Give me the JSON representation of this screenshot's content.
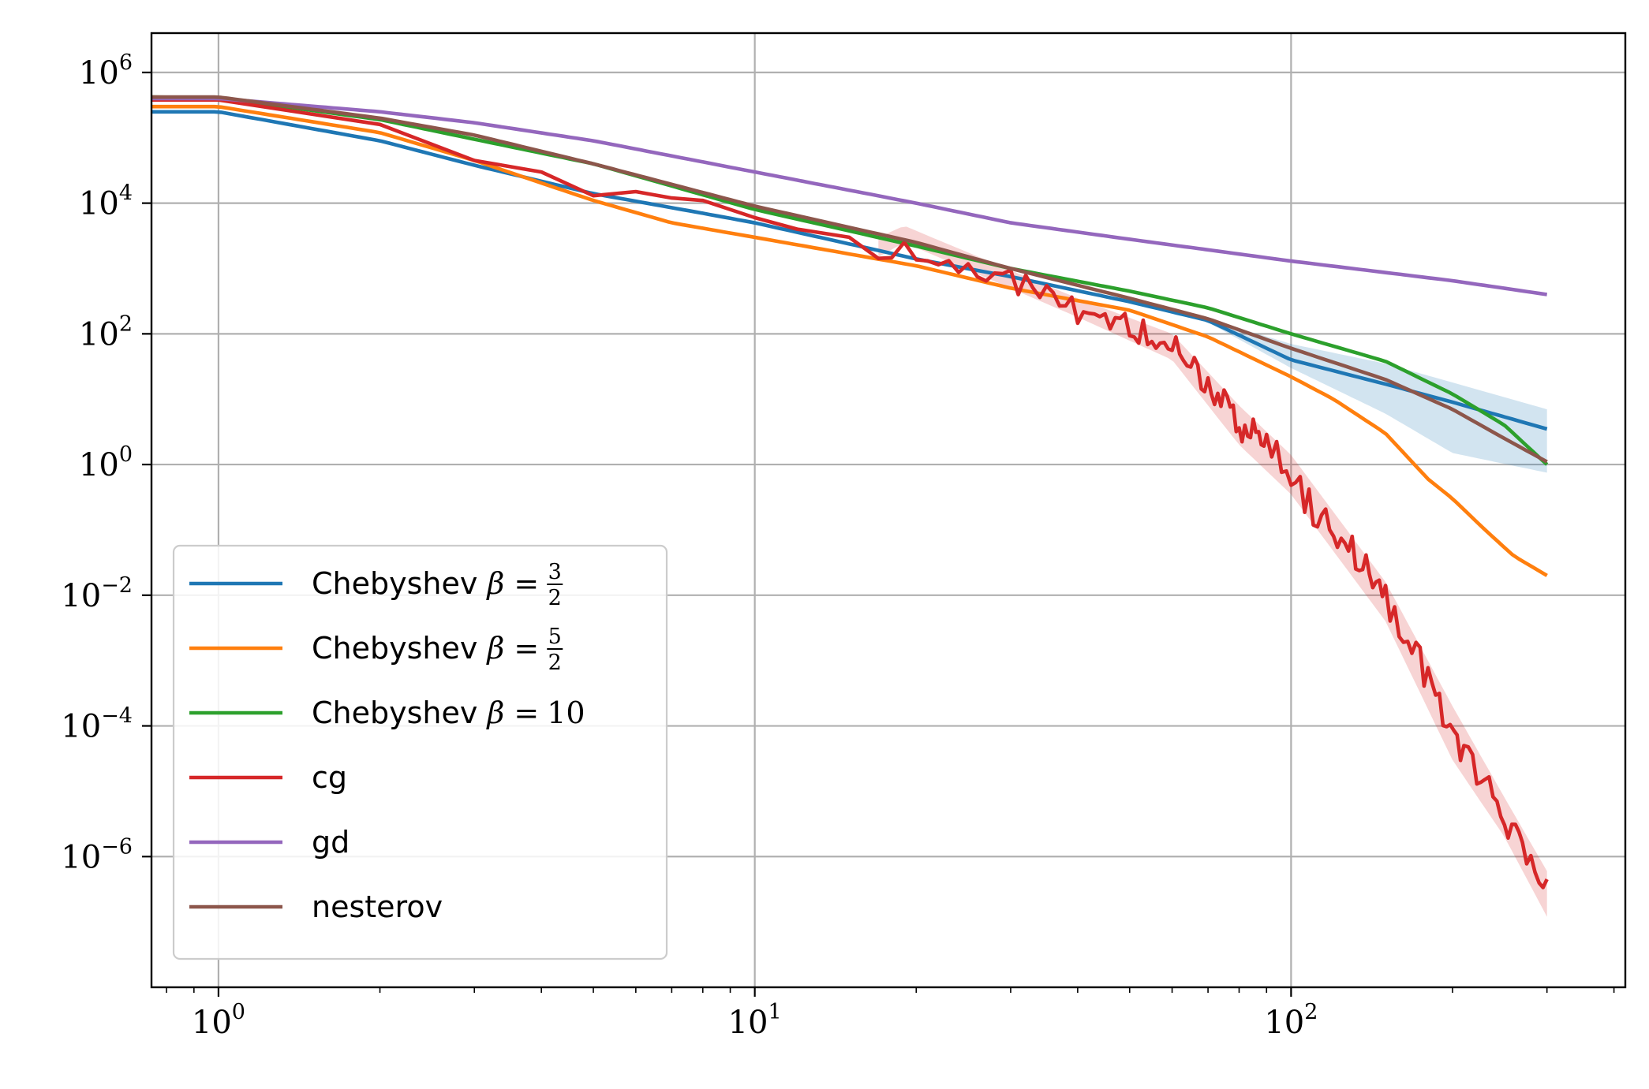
{
  "chart_data": {
    "type": "line",
    "title": "",
    "xlabel": "",
    "ylabel": "",
    "x_scale": "log",
    "y_scale": "log",
    "xlim": [
      0.75,
      420
    ],
    "ylim": [
      1e-08,
      4000000.0
    ],
    "grid": true,
    "legend_position": "lower-left",
    "x_ticks": [
      {
        "value": 1,
        "base": "10",
        "exp": "0"
      },
      {
        "value": 10,
        "base": "10",
        "exp": "1"
      },
      {
        "value": 100,
        "base": "10",
        "exp": "2"
      }
    ],
    "y_ticks": [
      {
        "value": 1000000.0,
        "base": "10",
        "exp": "6"
      },
      {
        "value": 10000.0,
        "base": "10",
        "exp": "4"
      },
      {
        "value": 100.0,
        "base": "10",
        "exp": "2"
      },
      {
        "value": 1,
        "base": "10",
        "exp": "0"
      },
      {
        "value": 0.01,
        "base": "10",
        "exp": "−2"
      },
      {
        "value": 0.0001,
        "base": "10",
        "exp": "−4"
      },
      {
        "value": 1e-06,
        "base": "10",
        "exp": "−6"
      }
    ],
    "series": [
      {
        "name": "Chebyshev β = 3/2",
        "legend_prefix": "Chebyshev",
        "legend_math": "β =",
        "legend_num": "",
        "legend_frac_num": "3",
        "legend_frac_den": "2",
        "color": "#1f77b4",
        "points": [
          [
            0.75,
            250000
          ],
          [
            1,
            250000
          ],
          [
            2,
            90000
          ],
          [
            3,
            38000
          ],
          [
            5,
            14000
          ],
          [
            8,
            7000
          ],
          [
            10,
            5000
          ],
          [
            20,
            1400
          ],
          [
            30,
            750
          ],
          [
            50,
            310
          ],
          [
            70,
            160
          ],
          [
            100,
            40
          ],
          [
            150,
            17
          ],
          [
            200,
            9
          ],
          [
            300,
            3.5
          ]
        ],
        "band": {
          "color": "#1f77b4",
          "opacity": 0.2,
          "upper": [
            [
              50,
              320
            ],
            [
              70,
              170
            ],
            [
              100,
              70
            ],
            [
              150,
              35
            ],
            [
              200,
              18
            ],
            [
              300,
              7
            ]
          ],
          "lower": [
            [
              50,
              300
            ],
            [
              70,
              150
            ],
            [
              100,
              30
            ],
            [
              150,
              6
            ],
            [
              200,
              1.5
            ],
            [
              300,
              0.75
            ]
          ]
        }
      },
      {
        "name": "Chebyshev β = 5/2",
        "legend_prefix": "Chebyshev",
        "legend_math": "β =",
        "legend_num": "",
        "legend_frac_num": "5",
        "legend_frac_den": "2",
        "color": "#ff7f0e",
        "points": [
          [
            0.75,
            300000
          ],
          [
            1,
            300000
          ],
          [
            2,
            120000
          ],
          [
            3,
            45000
          ],
          [
            5,
            11000
          ],
          [
            7,
            5000
          ],
          [
            10,
            3000
          ],
          [
            20,
            1100
          ],
          [
            30,
            500
          ],
          [
            50,
            230
          ],
          [
            70,
            90
          ],
          [
            100,
            22
          ],
          [
            120,
            10
          ],
          [
            150,
            3
          ],
          [
            180,
            0.6
          ],
          [
            200,
            0.3
          ],
          [
            230,
            0.1
          ],
          [
            260,
            0.04
          ],
          [
            300,
            0.02
          ]
        ]
      },
      {
        "name": "Chebyshev β = 10",
        "legend_prefix": "Chebyshev",
        "legend_math": "β =",
        "legend_num": "10",
        "legend_frac_num": "",
        "legend_frac_den": "",
        "color": "#2ca02c",
        "points": [
          [
            0.75,
            420000
          ],
          [
            1,
            410000
          ],
          [
            2,
            190000
          ],
          [
            3,
            95000
          ],
          [
            5,
            40000
          ],
          [
            10,
            8000
          ],
          [
            20,
            2200
          ],
          [
            30,
            1000
          ],
          [
            50,
            450
          ],
          [
            70,
            250
          ],
          [
            100,
            100
          ],
          [
            150,
            38
          ],
          [
            200,
            12
          ],
          [
            250,
            4
          ],
          [
            300,
            1
          ]
        ]
      },
      {
        "name": "cg",
        "legend_prefix": "cg",
        "legend_math": "",
        "legend_num": "",
        "legend_frac_num": "",
        "legend_frac_den": "",
        "color": "#d62728",
        "noisy_from": 17,
        "noise_amp": 0.25,
        "points": [
          [
            0.75,
            380000
          ],
          [
            1,
            380000
          ],
          [
            2,
            160000
          ],
          [
            3,
            45000
          ],
          [
            4,
            30000
          ],
          [
            5,
            13000
          ],
          [
            6,
            15000
          ],
          [
            7,
            12000
          ],
          [
            8,
            11000
          ],
          [
            10,
            6000
          ],
          [
            12,
            4000
          ],
          [
            15,
            3000
          ],
          [
            18,
            2000
          ],
          [
            19,
            3500
          ],
          [
            20,
            1500
          ],
          [
            22,
            900
          ],
          [
            25,
            700
          ],
          [
            30,
            600
          ],
          [
            35,
            600
          ],
          [
            40,
            250
          ],
          [
            45,
            150
          ],
          [
            50,
            150
          ],
          [
            60,
            60
          ],
          [
            70,
            20
          ],
          [
            80,
            4
          ],
          [
            90,
            2
          ],
          [
            100,
            0.7
          ],
          [
            110,
            0.2
          ],
          [
            120,
            0.1
          ],
          [
            130,
            0.05
          ],
          [
            140,
            0.02
          ],
          [
            150,
            0.008
          ],
          [
            170,
            0.0015
          ],
          [
            190,
            0.0002
          ],
          [
            210,
            4e-05
          ],
          [
            230,
            1.2e-05
          ],
          [
            250,
            4e-06
          ],
          [
            270,
            1.5e-06
          ],
          [
            300,
            3e-07
          ]
        ],
        "band": {
          "color": "#d62728",
          "opacity": 0.2,
          "upper": [
            [
              17,
              3000
            ],
            [
              19,
              4500
            ],
            [
              40,
              350
            ],
            [
              60,
              100
            ],
            [
              80,
              8
            ],
            [
              100,
              1.4
            ],
            [
              150,
              0.016
            ],
            [
              200,
              0.0002
            ],
            [
              250,
              8e-06
            ],
            [
              300,
              6e-07
            ]
          ],
          "lower": [
            [
              17,
              1500
            ],
            [
              19,
              2500
            ],
            [
              40,
              180
            ],
            [
              60,
              40
            ],
            [
              80,
              2
            ],
            [
              100,
              0.35
            ],
            [
              150,
              0.004
            ],
            [
              200,
              3e-05
            ],
            [
              250,
              2e-06
            ],
            [
              300,
              1.2e-07
            ]
          ]
        }
      },
      {
        "name": "gd",
        "legend_prefix": "gd",
        "legend_math": "",
        "legend_num": "",
        "legend_frac_num": "",
        "legend_frac_den": "",
        "color": "#9467bd",
        "points": [
          [
            0.75,
            400000
          ],
          [
            1,
            400000
          ],
          [
            2,
            250000
          ],
          [
            3,
            170000
          ],
          [
            5,
            90000
          ],
          [
            10,
            30000
          ],
          [
            20,
            10000
          ],
          [
            30,
            5000
          ],
          [
            50,
            2800
          ],
          [
            100,
            1300
          ],
          [
            200,
            650
          ],
          [
            300,
            400
          ]
        ]
      },
      {
        "name": "nesterov",
        "legend_prefix": "nesterov",
        "legend_math": "",
        "legend_num": "",
        "legend_frac_num": "",
        "legend_frac_den": "",
        "color": "#8c564b",
        "points": [
          [
            0.75,
            420000
          ],
          [
            1,
            420000
          ],
          [
            2,
            200000
          ],
          [
            3,
            110000
          ],
          [
            5,
            40000
          ],
          [
            10,
            9000
          ],
          [
            20,
            2500
          ],
          [
            30,
            1000
          ],
          [
            50,
            350
          ],
          [
            70,
            170
          ],
          [
            100,
            60
          ],
          [
            150,
            20
          ],
          [
            200,
            7
          ],
          [
            250,
            2.5
          ],
          [
            300,
            1.1
          ]
        ]
      }
    ]
  }
}
